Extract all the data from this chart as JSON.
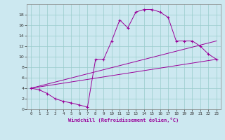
{
  "xlabel": "Windchill (Refroidissement éolien,°C)",
  "bg_color": "#cce8f0",
  "line_color": "#990099",
  "grid_color": "#99cccc",
  "xlim": [
    -0.5,
    23.5
  ],
  "ylim": [
    0,
    20
  ],
  "xticks": [
    0,
    1,
    2,
    3,
    4,
    5,
    6,
    7,
    8,
    9,
    10,
    11,
    12,
    13,
    14,
    15,
    16,
    17,
    18,
    19,
    20,
    21,
    22,
    23
  ],
  "yticks": [
    0,
    2,
    4,
    6,
    8,
    10,
    12,
    14,
    16,
    18
  ],
  "main_x": [
    0,
    1,
    2,
    3,
    4,
    5,
    6,
    7,
    8,
    9,
    10,
    11,
    12,
    13,
    14,
    15,
    16,
    17,
    18,
    19,
    20,
    21,
    22,
    23
  ],
  "main_y": [
    4,
    3.7,
    3.0,
    2.0,
    1.5,
    1.2,
    0.8,
    0.4,
    9.5,
    9.5,
    13.0,
    17.0,
    15.5,
    18.5,
    19.0,
    19.0,
    18.5,
    17.5,
    13.0,
    13.0,
    13.0,
    12.0,
    10.5,
    9.5
  ],
  "line1_x": [
    0,
    23
  ],
  "line1_y": [
    4,
    13.0
  ],
  "line2_x": [
    0,
    23
  ],
  "line2_y": [
    4,
    9.5
  ]
}
